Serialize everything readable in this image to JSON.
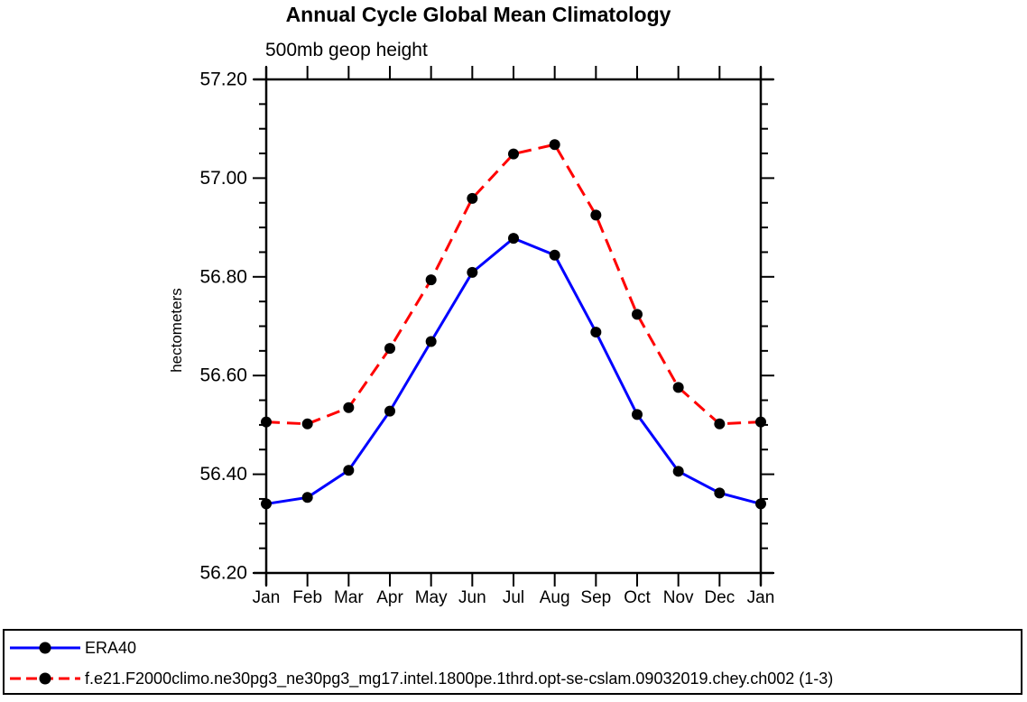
{
  "chart_data": {
    "type": "line",
    "title": "Annual Cycle Global Mean Climatology",
    "subtitle": "500mb geop height",
    "ylabel": "hectometers",
    "xlabel": "",
    "x_tick_labels": [
      "Jan",
      "Feb",
      "Mar",
      "Apr",
      "May",
      "Jun",
      "Jul",
      "Aug",
      "Sep",
      "Oct",
      "Nov",
      "Dec",
      "Jan"
    ],
    "y_tick_labels": [
      "56.20",
      "56.40",
      "56.60",
      "56.80",
      "57.00",
      "57.20"
    ],
    "ylim": [
      56.2,
      57.2
    ],
    "y_major_step": 0.2,
    "y_minor_step": 0.05,
    "grid": false,
    "legend_position": "bottom",
    "axis_color": "#000000",
    "marker_shape": "filled-circle",
    "series": [
      {
        "name": "ERA40",
        "color": "#0000ff",
        "line_style": "solid",
        "marker_color": "#000000",
        "values": [
          56.34,
          56.353,
          56.408,
          56.528,
          56.669,
          56.809,
          56.878,
          56.844,
          56.688,
          56.521,
          56.406,
          56.362,
          56.34
        ]
      },
      {
        "name": "f.e21.F2000climo.ne30pg3_ne30pg3_mg17.intel.1800pe.1thrd.opt-se-cslam.09032019.chey.ch002 (1-3)",
        "color": "#ff0000",
        "line_style": "dashed",
        "marker_color": "#000000",
        "values": [
          56.506,
          56.502,
          56.535,
          56.655,
          56.794,
          56.959,
          57.049,
          57.068,
          56.925,
          56.724,
          56.576,
          56.502,
          56.506
        ]
      }
    ]
  }
}
